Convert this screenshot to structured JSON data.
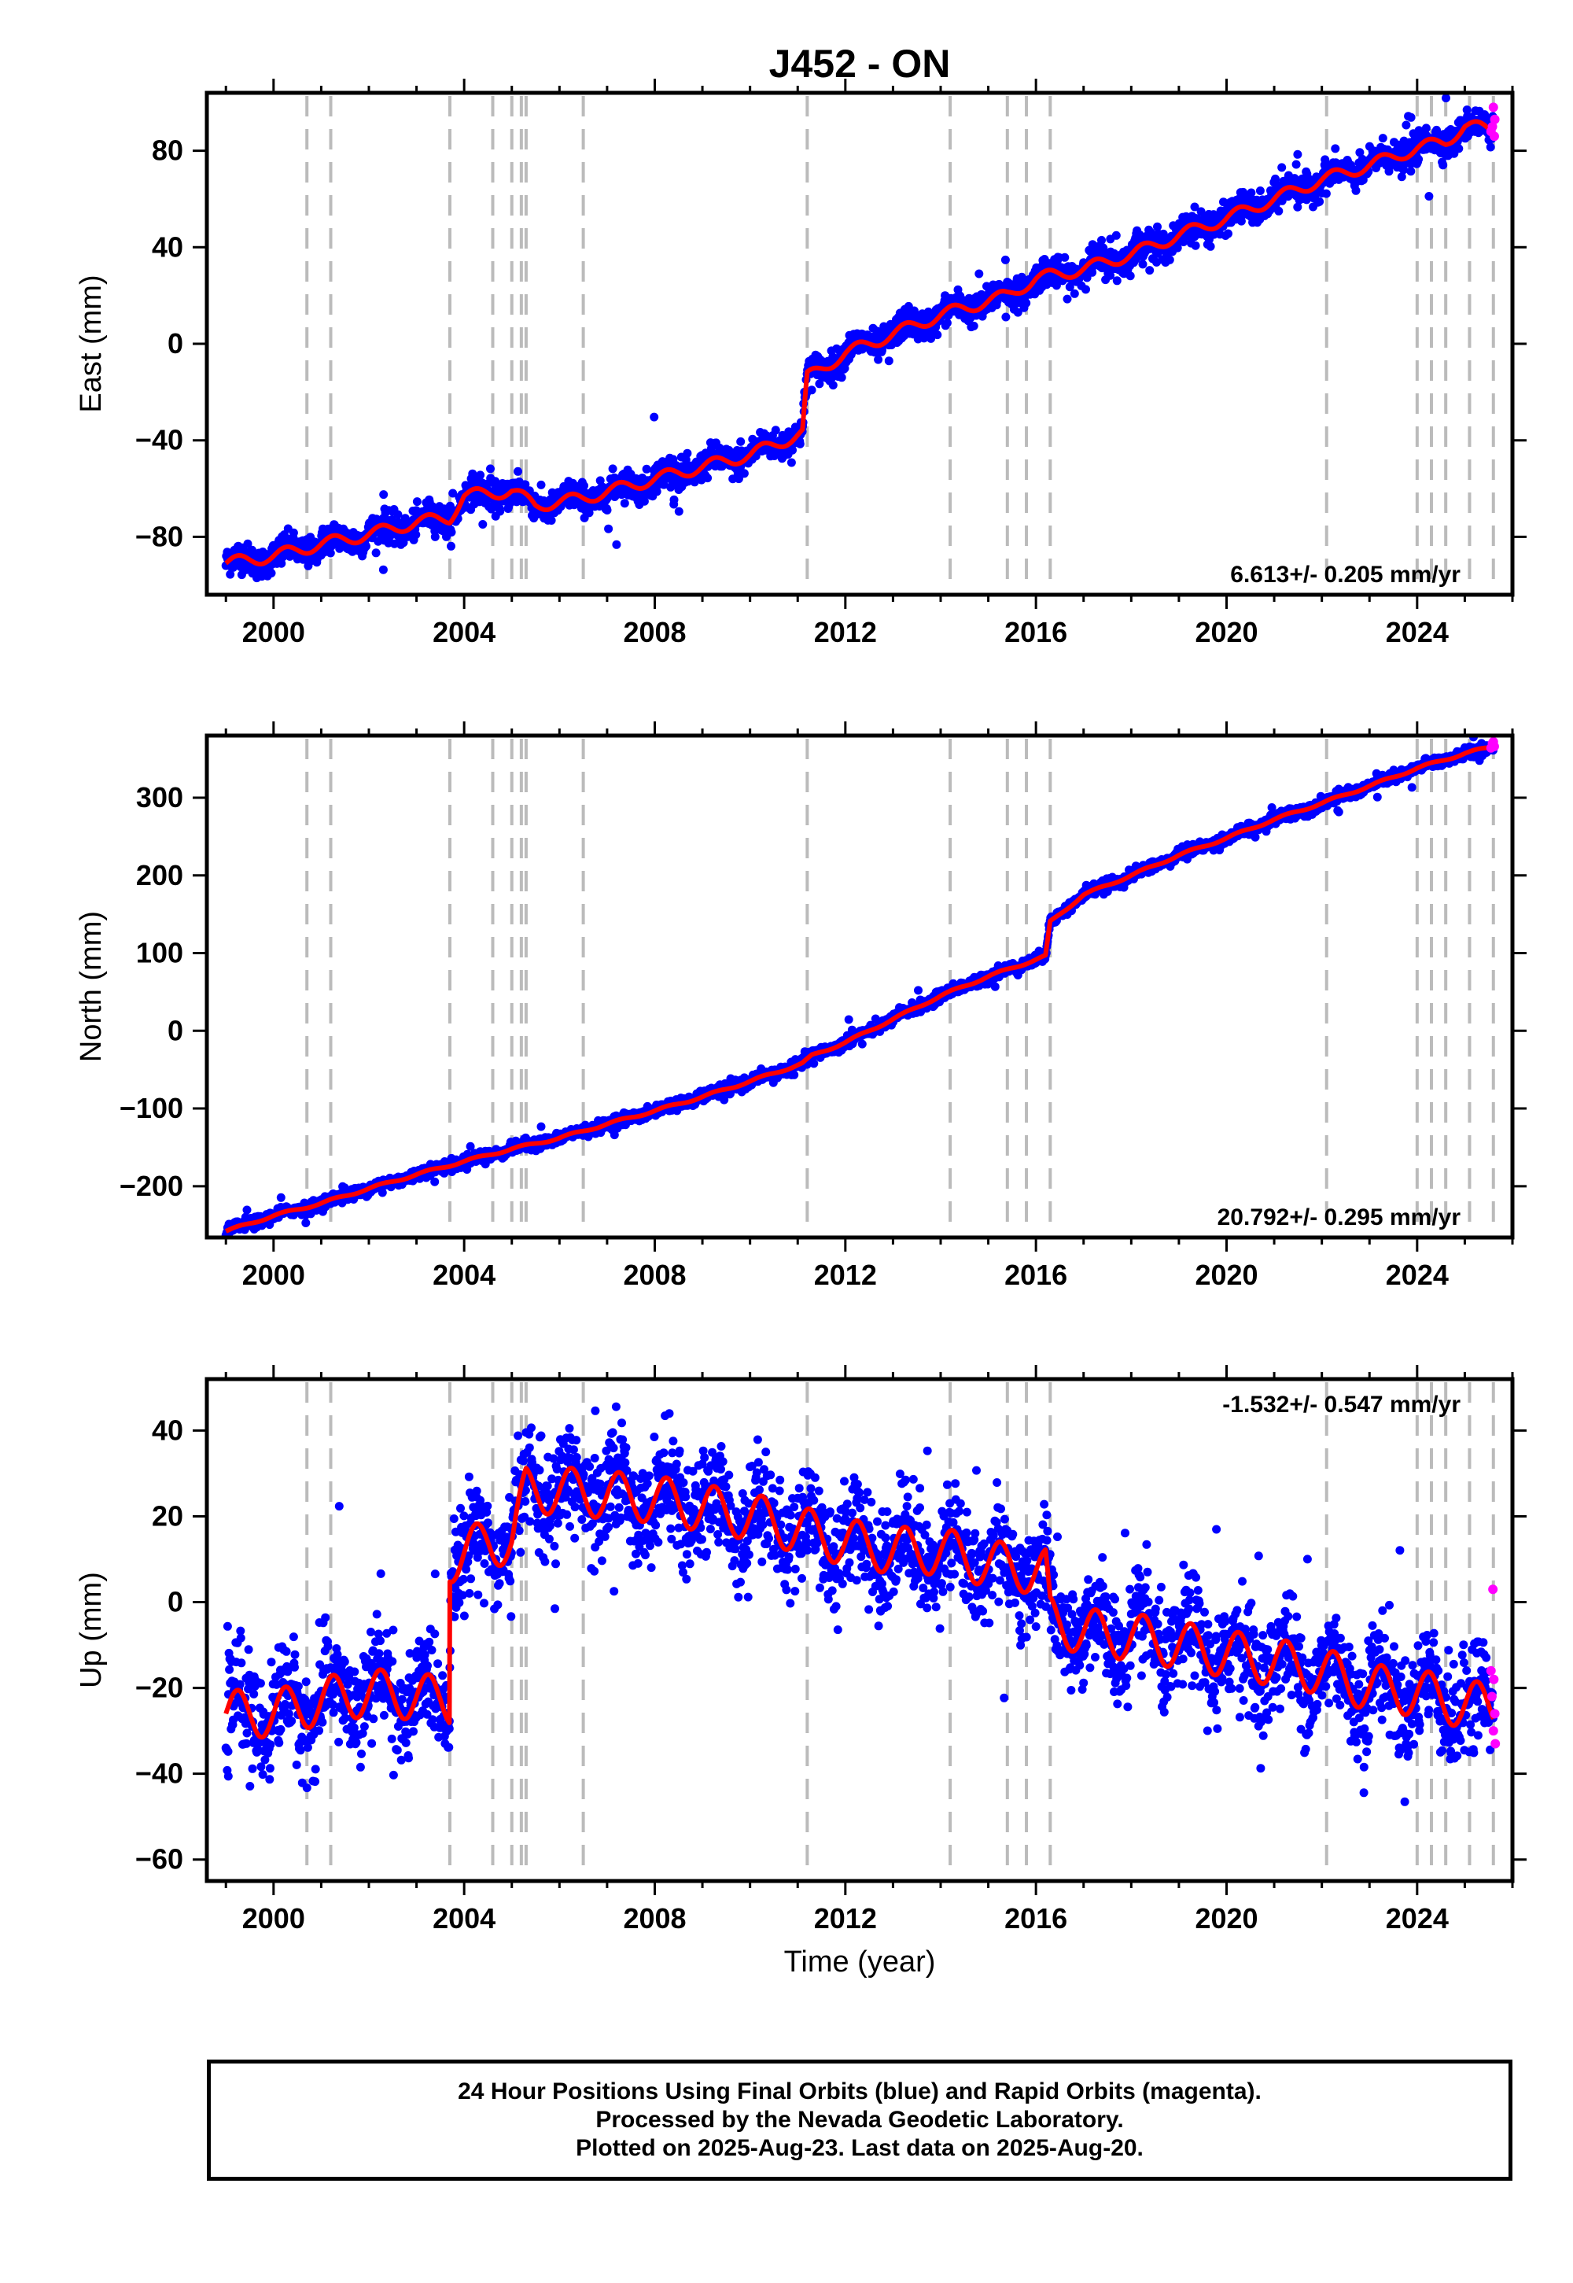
{
  "title": "J452 - ON",
  "footer": {
    "line1": "24 Hour Positions Using Final Orbits (blue) and Rapid Orbits (magenta).",
    "line2": "Processed by the Nevada Geodetic Laboratory.",
    "line3": "Plotted on 2025-Aug-23. Last data on 2025-Aug-20."
  },
  "colors": {
    "final_orbits": "#0000ff",
    "rapid_orbits": "#ff00ff",
    "model": "#ff0000",
    "event_lines": "#bbbbbb"
  },
  "chart_data": [
    {
      "type": "scatter",
      "ylabel": "East (mm)",
      "xlabel": "",
      "xlim": [
        1998.6,
        2026.0
      ],
      "ylim": [
        -104,
        104
      ],
      "xticks": [
        2000,
        2004,
        2008,
        2012,
        2016,
        2020,
        2024
      ],
      "yticks": [
        -80,
        -40,
        0,
        40,
        80
      ],
      "rate_label": "6.613+/- 0.205 mm/yr",
      "rate_position": "bottom-right",
      "event_lines": [
        2000.7,
        2001.2,
        2003.7,
        2004.6,
        2005.0,
        2005.2,
        2005.3,
        2006.5,
        2011.2,
        2014.2,
        2015.4,
        2015.8,
        2016.3,
        2022.1,
        2024.0,
        2024.3,
        2024.6,
        2025.1,
        2025.6
      ],
      "series": [
        {
          "name": "Final Orbits",
          "color": "#0000ff",
          "trend": [
            [
              1999.0,
              -91
            ],
            [
              2000.0,
              -88
            ],
            [
              2001.0,
              -83
            ],
            [
              2002.0,
              -79
            ],
            [
              2003.0,
              -74
            ],
            [
              2003.7,
              -72
            ],
            [
              2004.0,
              -63
            ],
            [
              2005.0,
              -61
            ],
            [
              2005.5,
              -67
            ],
            [
              2006.5,
              -64
            ],
            [
              2008.0,
              -56
            ],
            [
              2009.0,
              -51
            ],
            [
              2010.0,
              -46
            ],
            [
              2011.1,
              -37
            ],
            [
              2011.2,
              -14
            ],
            [
              2012.0,
              -4
            ],
            [
              2013.0,
              4
            ],
            [
              2014.0,
              12
            ],
            [
              2015.4,
              20
            ],
            [
              2016.0,
              27
            ],
            [
              2017.0,
              31
            ],
            [
              2018.0,
              37
            ],
            [
              2019.0,
              45
            ],
            [
              2020.0,
              52
            ],
            [
              2021.0,
              60
            ],
            [
              2022.0,
              68
            ],
            [
              2023.0,
              74
            ],
            [
              2024.0,
              81
            ],
            [
              2024.6,
              84
            ],
            [
              2025.0,
              90
            ],
            [
              2025.6,
              89
            ]
          ],
          "seasonal_amplitude": 2.5,
          "scatter": 3.0
        },
        {
          "name": "Rapid Orbits",
          "color": "#ff00ff",
          "points": [
            [
              2025.55,
              88
            ],
            [
              2025.58,
              90
            ],
            [
              2025.6,
              98
            ],
            [
              2025.62,
              86
            ],
            [
              2025.63,
              93
            ]
          ]
        }
      ]
    },
    {
      "type": "scatter",
      "ylabel": "North (mm)",
      "xlabel": "",
      "xlim": [
        1998.6,
        2026.0
      ],
      "ylim": [
        -266,
        380
      ],
      "xticks": [
        2000,
        2004,
        2008,
        2012,
        2016,
        2020,
        2024
      ],
      "yticks": [
        -200,
        -100,
        0,
        100,
        200,
        300
      ],
      "rate_label": "20.792+/- 0.295 mm/yr",
      "rate_position": "bottom-right",
      "event_lines": [
        2000.7,
        2001.2,
        2003.7,
        2004.6,
        2005.0,
        2005.2,
        2005.3,
        2006.5,
        2011.2,
        2014.2,
        2015.4,
        2015.8,
        2016.3,
        2022.1,
        2024.0,
        2024.3,
        2024.6,
        2025.1,
        2025.6
      ],
      "series": [
        {
          "name": "Final Orbits",
          "color": "#0000ff",
          "trend": [
            [
              1999.0,
              -258
            ],
            [
              2000.0,
              -238
            ],
            [
              2001.0,
              -222
            ],
            [
              2002.0,
              -203
            ],
            [
              2003.0,
              -185
            ],
            [
              2004.0,
              -168
            ],
            [
              2005.0,
              -152
            ],
            [
              2006.0,
              -138
            ],
            [
              2007.0,
              -120
            ],
            [
              2008.0,
              -103
            ],
            [
              2009.0,
              -85
            ],
            [
              2010.0,
              -65
            ],
            [
              2011.1,
              -42
            ],
            [
              2011.3,
              -32
            ],
            [
              2012.0,
              -15
            ],
            [
              2013.0,
              15
            ],
            [
              2014.0,
              45
            ],
            [
              2015.0,
              70
            ],
            [
              2016.2,
              96
            ],
            [
              2016.3,
              140
            ],
            [
              2017.0,
              175
            ],
            [
              2018.0,
              200
            ],
            [
              2019.0,
              226
            ],
            [
              2020.0,
              248
            ],
            [
              2021.0,
              272
            ],
            [
              2022.0,
              293
            ],
            [
              2023.0,
              315
            ],
            [
              2024.0,
              338
            ],
            [
              2025.0,
              357
            ],
            [
              2025.6,
              366
            ]
          ],
          "seasonal_amplitude": 1.5,
          "scatter": 3.5
        },
        {
          "name": "Rapid Orbits",
          "color": "#ff00ff",
          "points": [
            [
              2025.55,
              364
            ],
            [
              2025.58,
              370
            ],
            [
              2025.6,
              372
            ],
            [
              2025.62,
              366
            ]
          ]
        }
      ]
    },
    {
      "type": "scatter",
      "ylabel": "Up (mm)",
      "xlabel": "Time (year)",
      "xlim": [
        1998.6,
        2026.0
      ],
      "ylim": [
        -65,
        52
      ],
      "xticks": [
        2000,
        2004,
        2008,
        2012,
        2016,
        2020,
        2024
      ],
      "yticks": [
        -60,
        -40,
        -20,
        0,
        20,
        40
      ],
      "rate_label": "-1.532+/- 0.547 mm/yr",
      "rate_position": "top-right",
      "event_lines": [
        2000.7,
        2001.2,
        2003.7,
        2004.6,
        2005.0,
        2005.2,
        2005.3,
        2006.5,
        2011.2,
        2014.2,
        2015.4,
        2015.8,
        2016.3,
        2022.1,
        2024.0,
        2024.3,
        2024.6,
        2025.1,
        2025.6
      ],
      "series": [
        {
          "name": "Final Orbits",
          "color": "#0000ff",
          "trend": [
            [
              1999.0,
              -26
            ],
            [
              2000.0,
              -26
            ],
            [
              2001.0,
              -23
            ],
            [
              2002.0,
              -21
            ],
            [
              2003.0,
              -22
            ],
            [
              2003.69,
              -23
            ],
            [
              2003.7,
              10
            ],
            [
              2004.5,
              14
            ],
            [
              2005.0,
              14
            ],
            [
              2005.3,
              26
            ],
            [
              2006.0,
              26
            ],
            [
              2007.0,
              25
            ],
            [
              2008.0,
              24
            ],
            [
              2009.0,
              22
            ],
            [
              2010.0,
              20
            ],
            [
              2011.0,
              17
            ],
            [
              2012.0,
              14
            ],
            [
              2013.0,
              12
            ],
            [
              2014.0,
              12
            ],
            [
              2015.0,
              9
            ],
            [
              2016.2,
              7
            ],
            [
              2016.3,
              -4
            ],
            [
              2017.0,
              -7
            ],
            [
              2018.0,
              -8
            ],
            [
              2019.0,
              -10
            ],
            [
              2020.0,
              -12
            ],
            [
              2021.0,
              -14
            ],
            [
              2022.0,
              -16
            ],
            [
              2023.0,
              -20
            ],
            [
              2024.0,
              -21
            ],
            [
              2025.0,
              -24
            ],
            [
              2025.6,
              -24
            ]
          ],
          "seasonal_amplitude": 5.5,
          "scatter": 6.0
        },
        {
          "name": "Rapid Orbits",
          "color": "#ff00ff",
          "points": [
            [
              2025.55,
              -16
            ],
            [
              2025.57,
              -22
            ],
            [
              2025.59,
              3
            ],
            [
              2025.6,
              -30
            ],
            [
              2025.61,
              -18
            ],
            [
              2025.63,
              -26
            ],
            [
              2025.64,
              -33
            ]
          ]
        }
      ]
    }
  ]
}
